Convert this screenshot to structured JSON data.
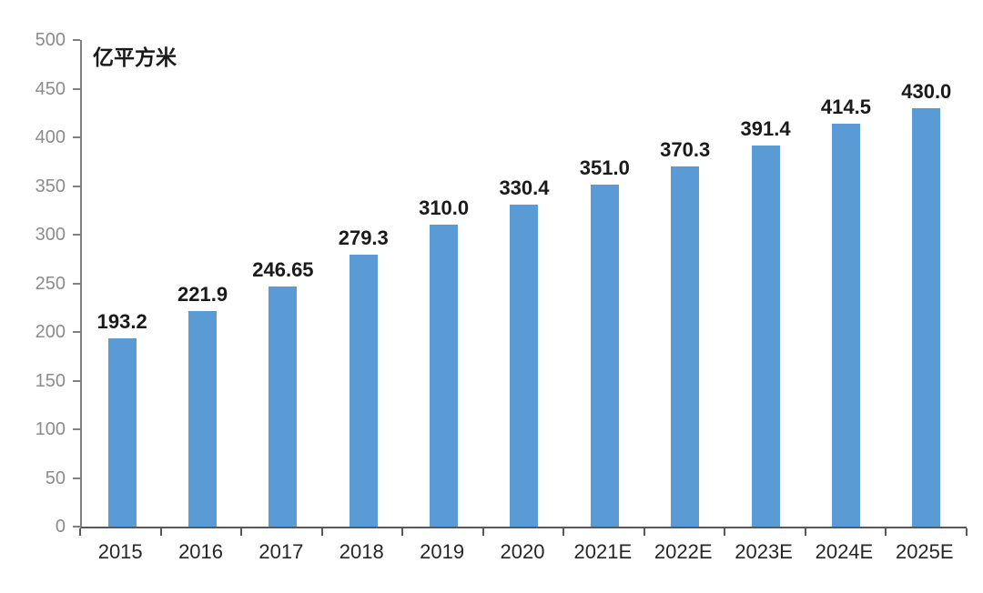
{
  "chart_data": {
    "type": "bar",
    "title": "",
    "unit_label": "亿平方米",
    "categories": [
      "2015",
      "2016",
      "2017",
      "2018",
      "2019",
      "2020",
      "2021E",
      "2022E",
      "2023E",
      "2024E",
      "2025E"
    ],
    "values": [
      193.2,
      221.9,
      246.65,
      279.3,
      310.0,
      330.4,
      351.0,
      370.3,
      391.4,
      414.5,
      430.0
    ],
    "value_labels": [
      "193.2",
      "221.9",
      "246.65",
      "279.3",
      "310.0",
      "330.4",
      "351.0",
      "370.3",
      "391.4",
      "414.5",
      "430.0"
    ],
    "ylim": [
      0,
      500
    ],
    "yticks": [
      0,
      50,
      100,
      150,
      200,
      250,
      300,
      350,
      400,
      450,
      500
    ],
    "grid": false,
    "legend_position": "none",
    "bar_color": "#5B9BD5",
    "y_label_color": "#8c8c8c",
    "x_label_color": "#262626",
    "value_label_color": "#1a1a1a"
  }
}
